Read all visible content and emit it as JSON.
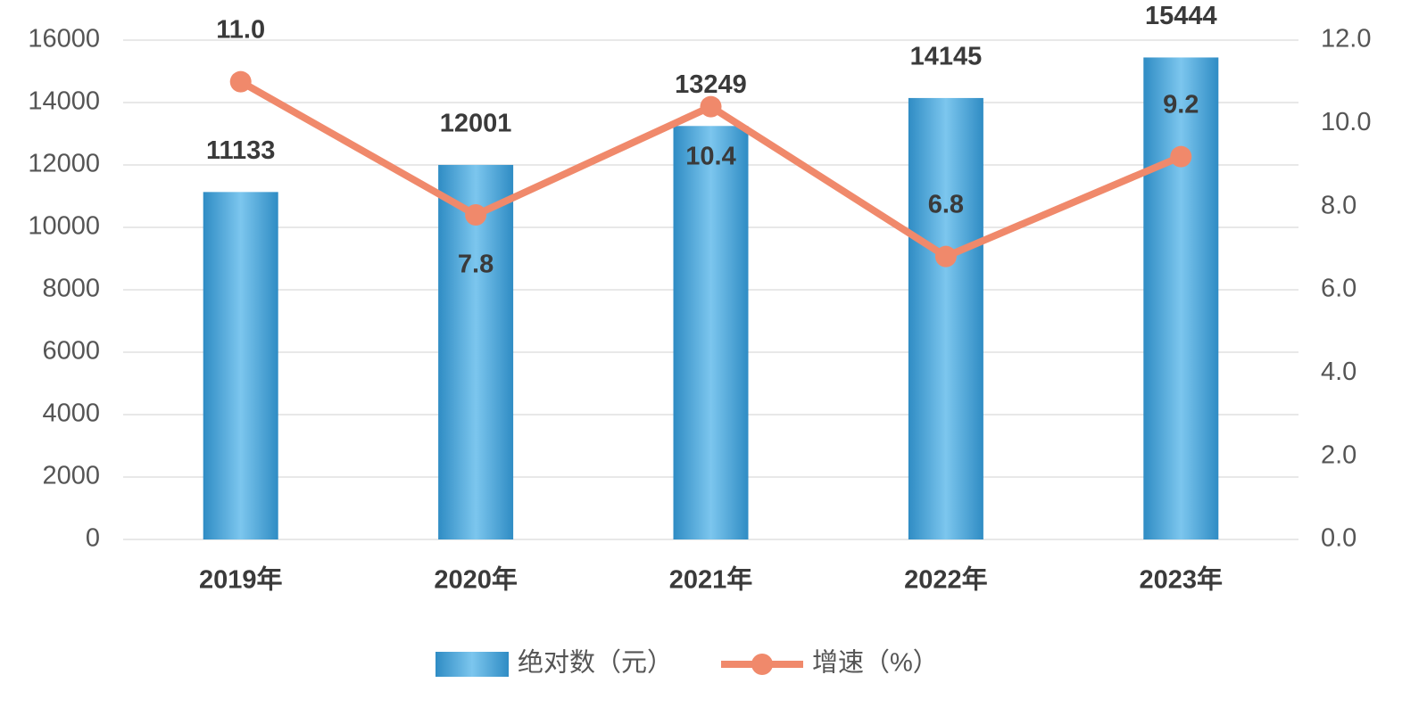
{
  "chart_data": {
    "type": "bar",
    "categories": [
      "2019年",
      "2020年",
      "2021年",
      "2022年",
      "2023年"
    ],
    "series": [
      {
        "name": "绝对数（元）",
        "type": "bar",
        "color": "#3a9fd6",
        "values": [
          11133,
          12001,
          13249,
          14145,
          15444
        ]
      },
      {
        "name": "增速（%）",
        "type": "line",
        "axis": "y2",
        "color": "#f0896b",
        "values": [
          11.0,
          7.8,
          10.4,
          6.8,
          9.2
        ],
        "value_labels": [
          "11.0",
          "7.8",
          "10.4",
          "6.8",
          "9.2"
        ]
      }
    ],
    "ylim": [
      0,
      16000
    ],
    "yticks": [
      0,
      2000,
      4000,
      6000,
      8000,
      10000,
      12000,
      14000,
      16000
    ],
    "y2lim": [
      0,
      12
    ],
    "y2ticks": [
      {
        "value": 0,
        "label": "0.0"
      },
      {
        "value": 2,
        "label": "2.0"
      },
      {
        "value": 4,
        "label": "4.0"
      },
      {
        "value": 6,
        "label": "6.0"
      },
      {
        "value": 8,
        "label": "8.0"
      },
      {
        "value": 10,
        "label": "10.0"
      },
      {
        "value": 12,
        "label": "12.0"
      }
    ],
    "grid": true,
    "legend": "bottom"
  }
}
